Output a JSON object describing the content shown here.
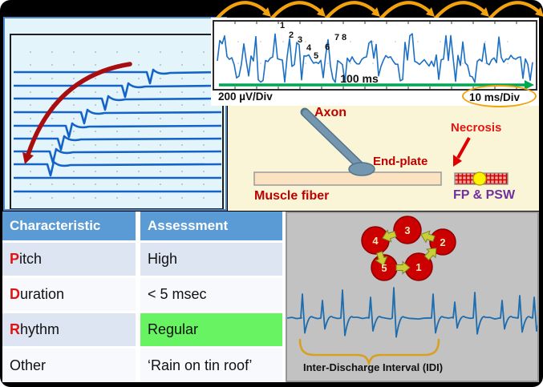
{
  "scope": {
    "gain_label": "200 µV/Div",
    "sweep_label": "10 ms/Div",
    "time_span_label": "100 ms",
    "peak_labels": [
      "1",
      "2",
      "3",
      "4",
      "5",
      "6",
      "7",
      "8"
    ]
  },
  "diagram": {
    "axon_label": "Axon",
    "end_plate_label": "End-plate",
    "muscle_fiber_label": "Muscle fiber",
    "necrosis_label": "Necrosis",
    "fp_psw_label": "FP & PSW"
  },
  "table": {
    "headers": [
      "Characteristic",
      "Assessment"
    ],
    "rows": [
      {
        "initial": "P",
        "rest": "itch",
        "assessment": "High",
        "highlight": false
      },
      {
        "initial": "D",
        "rest": "uration",
        "assessment": "< 5 msec",
        "highlight": false
      },
      {
        "initial": "R",
        "rest": "hythm",
        "assessment": "Regular",
        "highlight": true
      },
      {
        "initial": "",
        "rest": "Other",
        "assessment": "‘Rain on tin roof’",
        "highlight": false
      }
    ]
  },
  "cycle": {
    "node_labels": [
      "1",
      "2",
      "3",
      "4",
      "5"
    ],
    "idi_label": "Inter-Discharge Interval (IDI)"
  },
  "colors": {
    "header_blue": "#5B9BD5",
    "row_band": "#DCE5F1",
    "row_plain": "#F7F9FC",
    "highlight_green": "#68F363",
    "trace_blue": "#1565C8",
    "dark_red_label": "#C00000",
    "bright_red": "#E41712",
    "purple": "#7030A0",
    "orange_accent": "#F2A20C",
    "green_arrow": "#00A651",
    "node_red": "#CC0000",
    "arrow_olive": "#C9CD36",
    "panel_gray": "#C2C2C2",
    "panel_yellow": "#FBF5D8",
    "panel_lightblue": "#E3F4FB"
  }
}
